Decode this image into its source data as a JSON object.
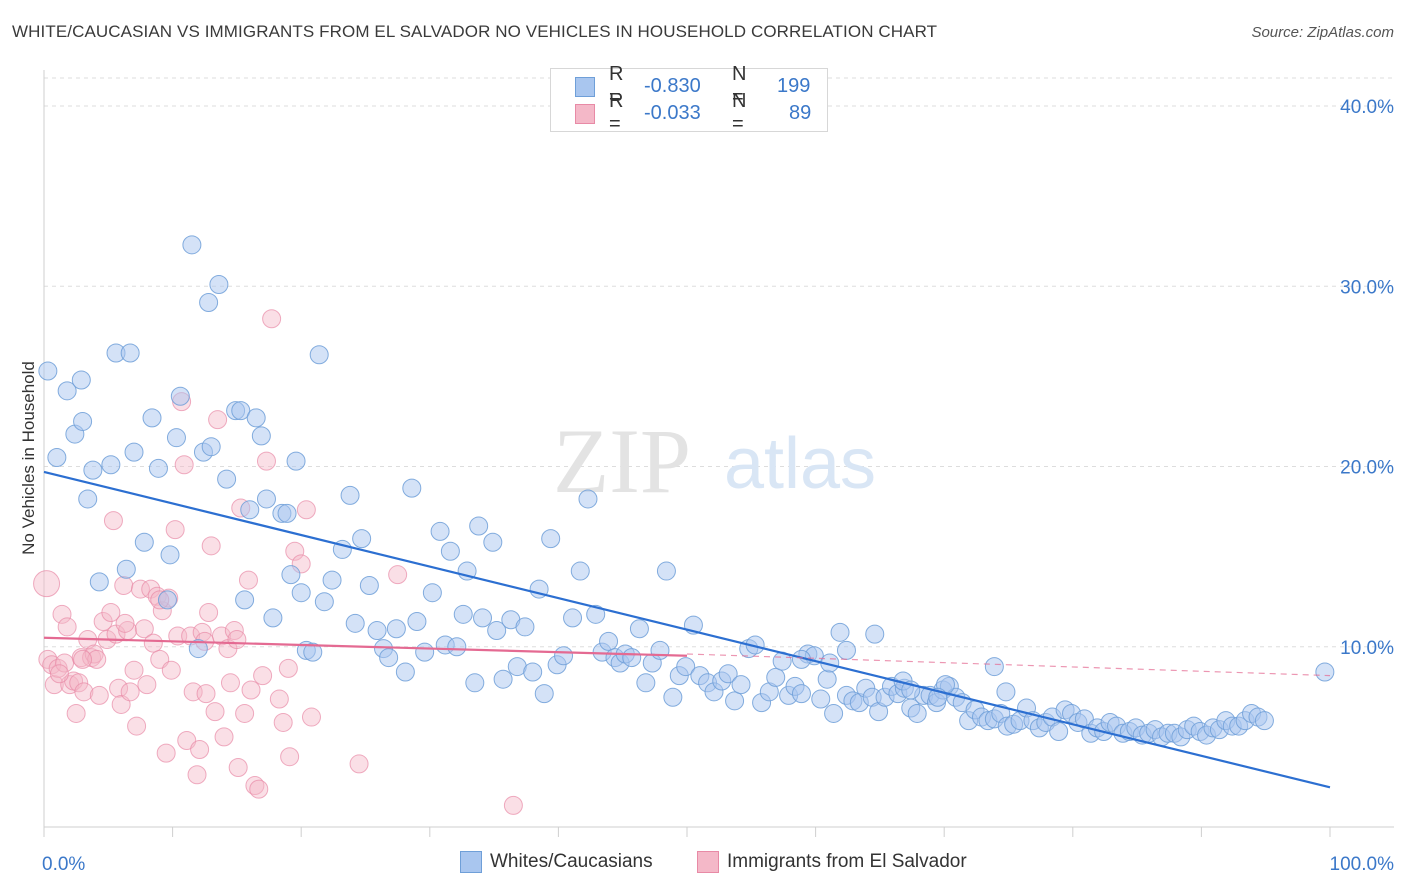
{
  "title": "WHITE/CAUCASIAN VS IMMIGRANTS FROM EL SALVADOR NO VEHICLES IN HOUSEHOLD CORRELATION CHART",
  "source": "Source: ZipAtlas.com",
  "watermark": {
    "zip": "ZIP",
    "atlas": "atlas"
  },
  "legend": {
    "rows": [
      {
        "r_label": "R =",
        "r_value": "-0.830",
        "n_label": "N =",
        "n_value": "199",
        "color": "#a9c6ef"
      },
      {
        "r_label": "R =",
        "r_value": "-0.033",
        "n_label": "N =",
        "n_value": "89",
        "color": "#f4b8c8"
      }
    ]
  },
  "bottom_legend": [
    {
      "label": "Whites/Caucasians",
      "color": "#a9c6ef"
    },
    {
      "label": "Immigrants from El Salvador",
      "color": "#f4b8c8"
    }
  ],
  "colors": {
    "blue_fill": "#a9c6ef",
    "blue_stroke": "#6f9fd8",
    "blue_line": "#2c6fd1",
    "pink_fill": "#f4b8c8",
    "pink_stroke": "#e88aa6",
    "pink_line": "#e46a92",
    "accent_text": "#3b78c9",
    "grid": "#dddddd"
  },
  "chart_data": {
    "type": "scatter",
    "title": "WHITE/CAUCASIAN VS IMMIGRANTS FROM EL SALVADOR NO VEHICLES IN HOUSEHOLD CORRELATION CHART",
    "xlabel": "",
    "ylabel": "No Vehicles in Household",
    "xlim": [
      0,
      100
    ],
    "ylim": [
      0,
      42
    ],
    "x_tick_labels": [
      "0.0%",
      "100.0%"
    ],
    "y_ticks": [
      10,
      20,
      30,
      40
    ],
    "y_tick_labels": [
      "10.0%",
      "20.0%",
      "30.0%",
      "40.0%"
    ],
    "grid": "horizontal dashed",
    "legend_position": "top-center",
    "series": [
      {
        "name": "Whites/Caucasians",
        "color": "#a9c6ef",
        "trend": {
          "x": [
            0,
            100
          ],
          "y": [
            19.7,
            2.2
          ]
        },
        "points": [
          [
            0.3,
            25.3
          ],
          [
            1.0,
            20.5
          ],
          [
            1.8,
            24.2
          ],
          [
            2.4,
            21.8
          ],
          [
            2.9,
            24.8
          ],
          [
            3.0,
            22.5
          ],
          [
            3.4,
            18.2
          ],
          [
            3.8,
            19.8
          ],
          [
            4.3,
            13.6
          ],
          [
            5.2,
            20.1
          ],
          [
            5.6,
            26.3
          ],
          [
            6.4,
            14.3
          ],
          [
            6.7,
            26.3
          ],
          [
            7.0,
            20.8
          ],
          [
            7.8,
            15.8
          ],
          [
            8.4,
            22.7
          ],
          [
            8.9,
            19.9
          ],
          [
            9.6,
            12.6
          ],
          [
            9.8,
            15.1
          ],
          [
            10.3,
            21.6
          ],
          [
            10.6,
            23.9
          ],
          [
            11.5,
            32.3
          ],
          [
            12.0,
            9.9
          ],
          [
            12.4,
            20.8
          ],
          [
            12.8,
            29.1
          ],
          [
            13.0,
            21.1
          ],
          [
            13.6,
            30.1
          ],
          [
            14.2,
            19.3
          ],
          [
            14.9,
            23.1
          ],
          [
            15.3,
            23.1
          ],
          [
            15.6,
            12.6
          ],
          [
            16.0,
            17.6
          ],
          [
            16.5,
            22.7
          ],
          [
            16.9,
            21.7
          ],
          [
            17.3,
            18.2
          ],
          [
            17.8,
            11.6
          ],
          [
            18.5,
            17.4
          ],
          [
            18.9,
            17.4
          ],
          [
            19.2,
            14.0
          ],
          [
            19.6,
            20.3
          ],
          [
            20.0,
            13.0
          ],
          [
            20.4,
            9.8
          ],
          [
            20.9,
            9.7
          ],
          [
            21.4,
            26.2
          ],
          [
            21.8,
            12.5
          ],
          [
            22.4,
            13.7
          ],
          [
            23.2,
            15.4
          ],
          [
            23.8,
            18.4
          ],
          [
            24.2,
            11.3
          ],
          [
            24.7,
            16.0
          ],
          [
            25.3,
            13.4
          ],
          [
            25.9,
            10.9
          ],
          [
            26.4,
            9.9
          ],
          [
            26.8,
            9.4
          ],
          [
            27.4,
            11.0
          ],
          [
            28.1,
            8.6
          ],
          [
            28.6,
            18.8
          ],
          [
            29.0,
            11.4
          ],
          [
            29.6,
            9.7
          ],
          [
            30.2,
            13.0
          ],
          [
            30.8,
            16.4
          ],
          [
            31.2,
            10.1
          ],
          [
            31.6,
            15.3
          ],
          [
            32.1,
            10.0
          ],
          [
            32.6,
            11.8
          ],
          [
            32.9,
            14.2
          ],
          [
            33.5,
            8.0
          ],
          [
            33.8,
            16.7
          ],
          [
            34.1,
            11.6
          ],
          [
            34.9,
            15.8
          ],
          [
            35.2,
            10.9
          ],
          [
            35.7,
            8.2
          ],
          [
            36.3,
            11.5
          ],
          [
            36.8,
            8.9
          ],
          [
            37.4,
            11.1
          ],
          [
            38.0,
            8.6
          ],
          [
            38.5,
            13.2
          ],
          [
            38.9,
            7.4
          ],
          [
            39.4,
            16.0
          ],
          [
            39.9,
            9.0
          ],
          [
            40.4,
            9.5
          ],
          [
            41.1,
            11.6
          ],
          [
            41.7,
            14.2
          ],
          [
            42.3,
            18.2
          ],
          [
            42.9,
            11.8
          ],
          [
            43.4,
            9.7
          ],
          [
            43.9,
            10.3
          ],
          [
            44.4,
            9.4
          ],
          [
            44.8,
            9.1
          ],
          [
            45.2,
            9.6
          ],
          [
            45.7,
            9.4
          ],
          [
            46.3,
            11.0
          ],
          [
            46.8,
            8.0
          ],
          [
            47.3,
            9.1
          ],
          [
            47.9,
            9.8
          ],
          [
            48.4,
            14.2
          ],
          [
            48.9,
            7.2
          ],
          [
            49.4,
            8.4
          ],
          [
            49.9,
            8.9
          ],
          [
            50.5,
            11.2
          ],
          [
            51.0,
            8.4
          ],
          [
            51.6,
            8.0
          ],
          [
            52.1,
            7.5
          ],
          [
            52.7,
            8.1
          ],
          [
            53.2,
            8.5
          ],
          [
            53.7,
            7.0
          ],
          [
            54.2,
            7.9
          ],
          [
            54.8,
            9.9
          ],
          [
            55.3,
            10.1
          ],
          [
            55.8,
            6.9
          ],
          [
            56.4,
            7.5
          ],
          [
            56.9,
            8.3
          ],
          [
            57.4,
            9.2
          ],
          [
            57.9,
            7.3
          ],
          [
            58.4,
            7.8
          ],
          [
            58.9,
            7.4
          ],
          [
            59.4,
            9.6
          ],
          [
            59.9,
            9.5
          ],
          [
            60.4,
            7.1
          ],
          [
            60.9,
            8.2
          ],
          [
            61.4,
            6.3
          ],
          [
            61.9,
            10.8
          ],
          [
            62.4,
            7.3
          ],
          [
            62.9,
            7.0
          ],
          [
            63.4,
            6.9
          ],
          [
            63.9,
            7.7
          ],
          [
            64.4,
            7.2
          ],
          [
            64.9,
            6.4
          ],
          [
            65.4,
            7.2
          ],
          [
            65.9,
            7.8
          ],
          [
            66.4,
            7.4
          ],
          [
            66.9,
            7.7
          ],
          [
            67.4,
            6.6
          ],
          [
            67.9,
            6.3
          ],
          [
            68.4,
            7.3
          ],
          [
            68.9,
            7.3
          ],
          [
            69.4,
            6.9
          ],
          [
            69.9,
            7.6
          ],
          [
            70.4,
            7.8
          ],
          [
            70.9,
            7.2
          ],
          [
            71.4,
            6.9
          ],
          [
            71.9,
            5.9
          ],
          [
            72.4,
            6.5
          ],
          [
            72.9,
            6.1
          ],
          [
            73.4,
            5.9
          ],
          [
            73.9,
            6.0
          ],
          [
            74.4,
            6.3
          ],
          [
            74.9,
            5.6
          ],
          [
            75.4,
            5.7
          ],
          [
            75.9,
            5.9
          ],
          [
            76.4,
            6.6
          ],
          [
            76.9,
            5.9
          ],
          [
            77.4,
            5.5
          ],
          [
            77.9,
            5.8
          ],
          [
            78.4,
            6.1
          ],
          [
            78.9,
            5.3
          ],
          [
            79.4,
            6.5
          ],
          [
            79.9,
            6.3
          ],
          [
            80.4,
            5.8
          ],
          [
            80.9,
            6.0
          ],
          [
            81.4,
            5.2
          ],
          [
            81.9,
            5.5
          ],
          [
            82.4,
            5.3
          ],
          [
            82.9,
            5.8
          ],
          [
            83.4,
            5.6
          ],
          [
            83.9,
            5.2
          ],
          [
            84.4,
            5.3
          ],
          [
            84.9,
            5.5
          ],
          [
            85.4,
            5.1
          ],
          [
            85.9,
            5.2
          ],
          [
            86.4,
            5.4
          ],
          [
            86.9,
            5.0
          ],
          [
            87.4,
            5.2
          ],
          [
            87.9,
            5.2
          ],
          [
            88.4,
            5.0
          ],
          [
            88.9,
            5.4
          ],
          [
            89.4,
            5.6
          ],
          [
            89.9,
            5.3
          ],
          [
            90.4,
            5.1
          ],
          [
            90.9,
            5.5
          ],
          [
            91.4,
            5.4
          ],
          [
            91.9,
            5.9
          ],
          [
            92.4,
            5.6
          ],
          [
            92.9,
            5.6
          ],
          [
            93.4,
            5.9
          ],
          [
            93.9,
            6.3
          ],
          [
            94.4,
            6.1
          ],
          [
            94.9,
            5.9
          ],
          [
            99.6,
            8.6
          ],
          [
            66.8,
            8.1
          ],
          [
            70.1,
            7.9
          ],
          [
            62.4,
            9.8
          ],
          [
            64.6,
            10.7
          ],
          [
            58.9,
            9.3
          ],
          [
            67.4,
            7.6
          ],
          [
            61.1,
            9.1
          ],
          [
            73.9,
            8.9
          ],
          [
            74.8,
            7.5
          ],
          [
            69.5,
            7.2
          ]
        ]
      },
      {
        "name": "Immigrants from El Salvador",
        "color": "#f4b8c8",
        "trend": {
          "x": [
            50,
            100
          ],
          "y": [
            9.6,
            8.4
          ]
        },
        "trend_solid": {
          "x": [
            0,
            50
          ],
          "y": [
            10.5,
            9.5
          ]
        },
        "points": [
          [
            0.2,
            13.5
          ],
          [
            0.3,
            9.3
          ],
          [
            0.6,
            9.0
          ],
          [
            0.8,
            7.9
          ],
          [
            1.1,
            8.8
          ],
          [
            1.4,
            11.8
          ],
          [
            1.6,
            9.1
          ],
          [
            1.8,
            11.1
          ],
          [
            2.0,
            7.9
          ],
          [
            2.3,
            8.1
          ],
          [
            2.5,
            6.3
          ],
          [
            2.7,
            8.0
          ],
          [
            2.9,
            9.4
          ],
          [
            3.1,
            7.5
          ],
          [
            3.4,
            10.4
          ],
          [
            3.7,
            9.4
          ],
          [
            3.9,
            9.6
          ],
          [
            4.1,
            9.3
          ],
          [
            4.3,
            7.3
          ],
          [
            4.6,
            11.4
          ],
          [
            4.9,
            10.4
          ],
          [
            5.2,
            11.9
          ],
          [
            5.4,
            17.0
          ],
          [
            5.6,
            10.7
          ],
          [
            5.8,
            7.7
          ],
          [
            6.0,
            6.8
          ],
          [
            6.2,
            13.4
          ],
          [
            6.5,
            10.9
          ],
          [
            6.7,
            7.5
          ],
          [
            7.0,
            8.7
          ],
          [
            7.2,
            5.6
          ],
          [
            7.5,
            13.2
          ],
          [
            7.8,
            11.0
          ],
          [
            8.0,
            7.9
          ],
          [
            8.3,
            13.2
          ],
          [
            8.5,
            10.2
          ],
          [
            8.8,
            12.8
          ],
          [
            9.0,
            9.3
          ],
          [
            9.2,
            12.0
          ],
          [
            9.5,
            4.1
          ],
          [
            9.7,
            12.7
          ],
          [
            9.9,
            8.7
          ],
          [
            10.2,
            16.5
          ],
          [
            10.4,
            10.6
          ],
          [
            10.7,
            23.6
          ],
          [
            10.9,
            20.1
          ],
          [
            11.1,
            4.8
          ],
          [
            11.4,
            10.6
          ],
          [
            11.6,
            7.5
          ],
          [
            11.9,
            2.9
          ],
          [
            12.1,
            4.3
          ],
          [
            12.3,
            10.8
          ],
          [
            12.6,
            7.4
          ],
          [
            12.8,
            11.9
          ],
          [
            13.0,
            15.6
          ],
          [
            13.3,
            6.4
          ],
          [
            13.5,
            22.6
          ],
          [
            13.8,
            10.6
          ],
          [
            14.0,
            5.0
          ],
          [
            14.3,
            9.9
          ],
          [
            14.5,
            8.0
          ],
          [
            14.8,
            10.9
          ],
          [
            15.1,
            3.3
          ],
          [
            15.3,
            17.7
          ],
          [
            15.6,
            6.3
          ],
          [
            15.9,
            13.7
          ],
          [
            16.1,
            7.6
          ],
          [
            16.4,
            2.3
          ],
          [
            16.7,
            2.1
          ],
          [
            17.0,
            8.4
          ],
          [
            17.3,
            20.3
          ],
          [
            17.7,
            28.2
          ],
          [
            18.3,
            7.1
          ],
          [
            18.6,
            5.8
          ],
          [
            19.1,
            3.9
          ],
          [
            19.5,
            15.3
          ],
          [
            20.0,
            14.6
          ],
          [
            20.4,
            17.6
          ],
          [
            20.8,
            6.1
          ],
          [
            27.5,
            14.0
          ],
          [
            24.5,
            3.5
          ],
          [
            36.5,
            1.2
          ],
          [
            19.0,
            8.8
          ],
          [
            12.5,
            10.3
          ],
          [
            6.3,
            11.3
          ],
          [
            3.0,
            9.3
          ],
          [
            1.2,
            8.5
          ],
          [
            9.0,
            12.6
          ],
          [
            15.0,
            10.4
          ]
        ]
      }
    ]
  }
}
